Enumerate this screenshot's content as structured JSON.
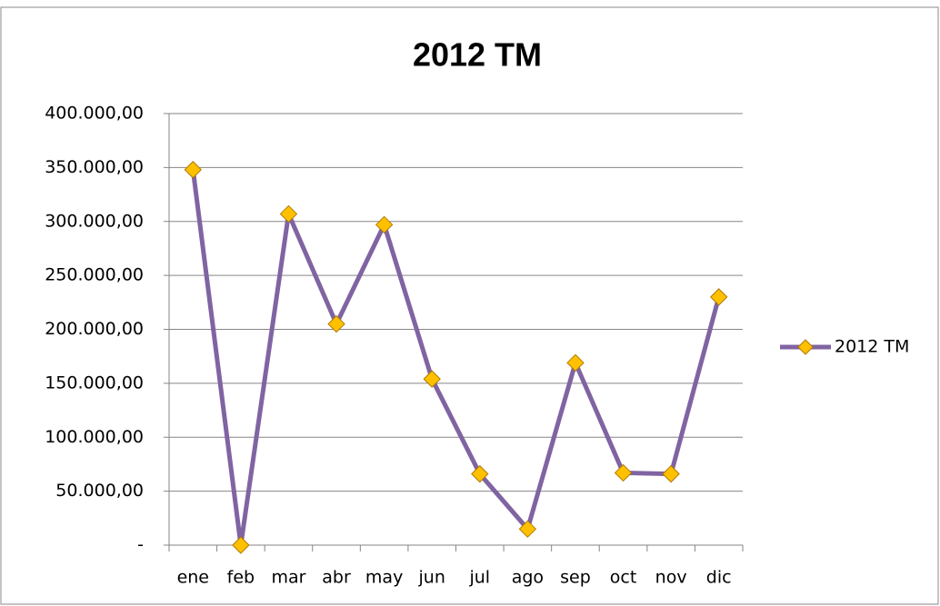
{
  "chart_data": {
    "type": "line",
    "title": "2012 TM",
    "categories": [
      "ene",
      "feb",
      "mar",
      "abr",
      "may",
      "jun",
      "jul",
      "ago",
      "sep",
      "oct",
      "nov",
      "dic"
    ],
    "series": [
      {
        "name": "2012 TM",
        "color": "#8064a2",
        "marker_color": "#ffc000",
        "values": [
          348000,
          0,
          307000,
          205000,
          297000,
          154000,
          66000,
          15000,
          169000,
          67000,
          66000,
          230000
        ]
      }
    ],
    "ylim": [
      0,
      400000
    ],
    "yticks": [
      {
        "value": 0,
        "label": "-"
      },
      {
        "value": 50000,
        "label": "50.000,00"
      },
      {
        "value": 100000,
        "label": "100.000,00"
      },
      {
        "value": 150000,
        "label": "150.000,00"
      },
      {
        "value": 200000,
        "label": "200.000,00"
      },
      {
        "value": 250000,
        "label": "250.000,00"
      },
      {
        "value": 300000,
        "label": "300.000,00"
      },
      {
        "value": 350000,
        "label": "350.000,00"
      },
      {
        "value": 400000,
        "label": "400.000,00"
      }
    ],
    "grid": true,
    "legend": "right"
  }
}
